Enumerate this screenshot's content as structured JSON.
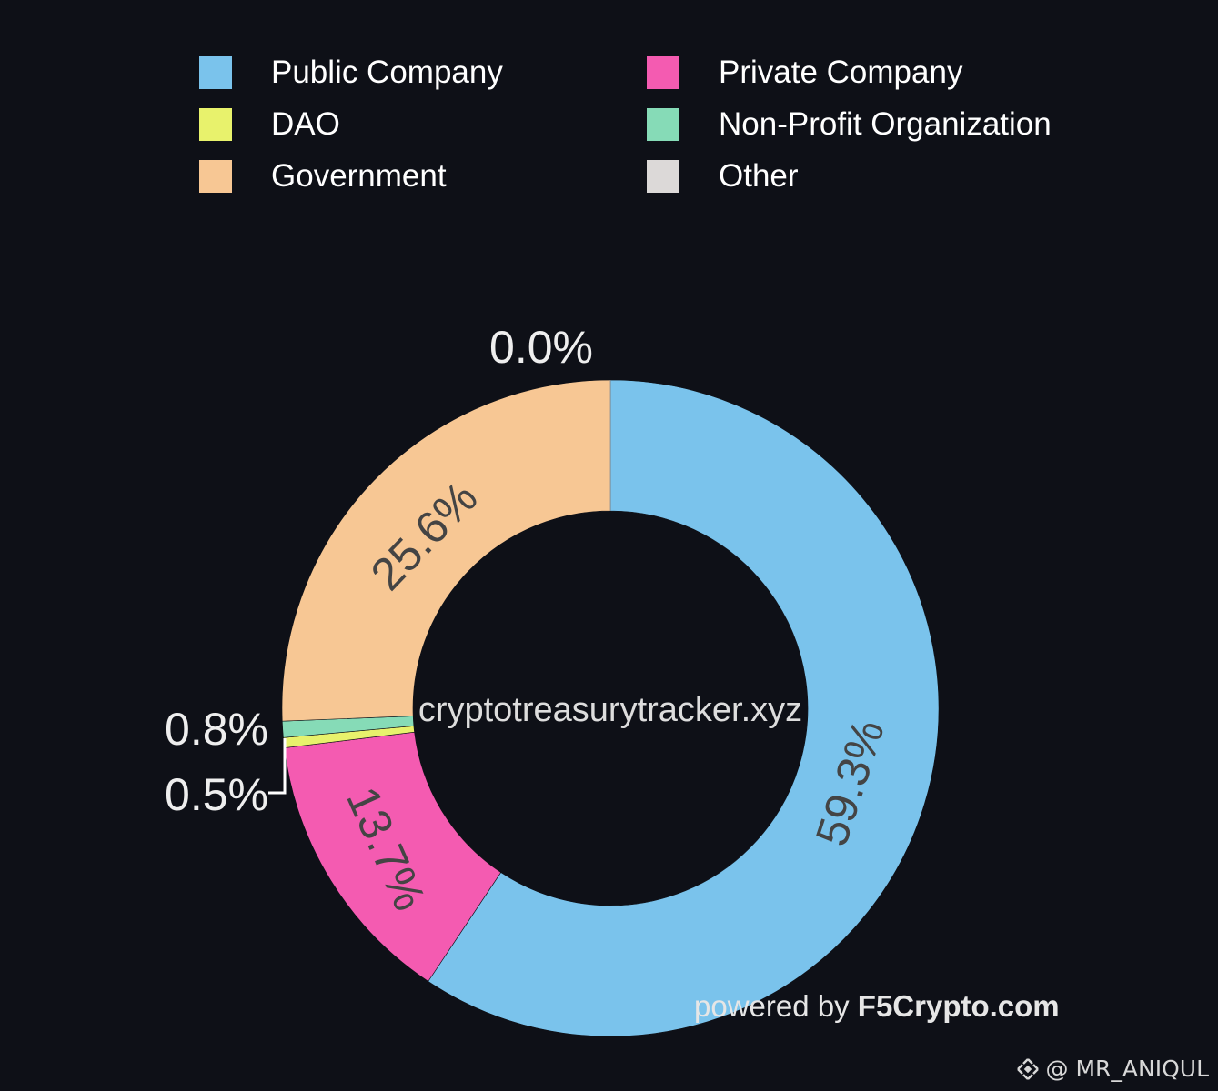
{
  "chart_data": {
    "type": "pie",
    "hole": true,
    "center_text": "cryptotreasurytracker.xyz",
    "categories": [
      "Public Company",
      "Private Company",
      "DAO",
      "Non-Profit Organization",
      "Government",
      "Other"
    ],
    "values": [
      59.3,
      13.7,
      0.5,
      0.8,
      25.6,
      0.0
    ],
    "labels": [
      "59.3%",
      "13.7%",
      "0.5%",
      "0.8%",
      "25.6%",
      "0.0%"
    ],
    "colors": [
      "#7ac3ec",
      "#f45bb1",
      "#e8f26c",
      "#86dbb7",
      "#f7c794",
      "#dcd9d8"
    ],
    "legend": "top",
    "direction": "counterclockwise-from-top"
  },
  "legend": {
    "items": [
      {
        "label": "Public Company",
        "color": "#7ac3ec"
      },
      {
        "label": "Private Company",
        "color": "#f45bb1"
      },
      {
        "label": "DAO",
        "color": "#e8f26c"
      },
      {
        "label": "Non-Profit Organization",
        "color": "#86dbb7"
      },
      {
        "label": "Government",
        "color": "#f7c794"
      },
      {
        "label": "Other",
        "color": "#dcd9d8"
      }
    ]
  },
  "watermark": {
    "prefix": "powered by ",
    "brand": "F5Crypto.com"
  },
  "credit": {
    "text": "@ MR_ANIQUL",
    "icon": "binance-logo-icon"
  }
}
